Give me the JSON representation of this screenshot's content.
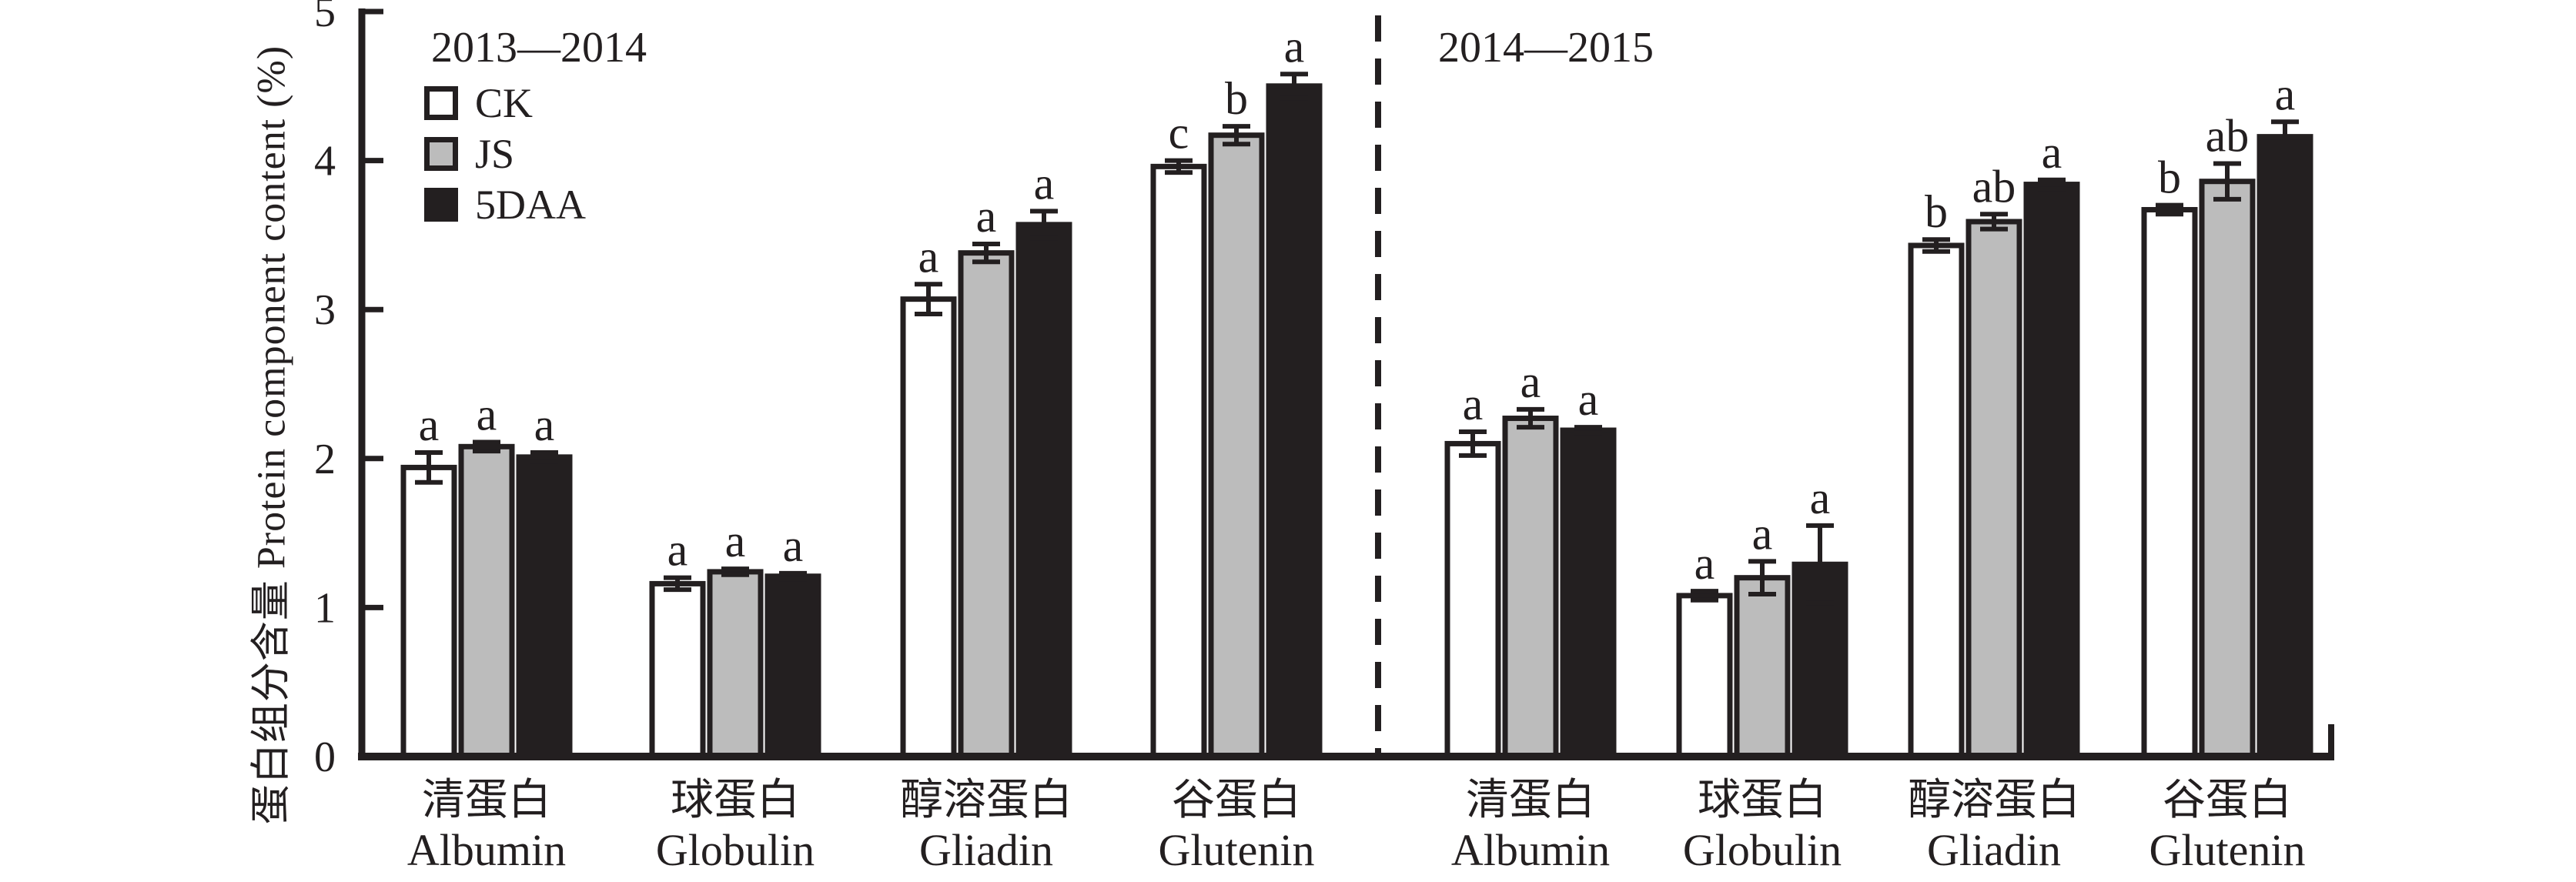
{
  "chart_data": {
    "type": "bar",
    "title": "",
    "ylabel": "蛋白组分含量 Protein component content (%)",
    "ylim": [
      0,
      5
    ],
    "yticks": [
      "0",
      "1",
      "2",
      "3",
      "4",
      "5"
    ],
    "grid": false,
    "legend": {
      "position": "top-left-inside",
      "items": [
        {
          "label": "CK",
          "fill": "#ffffff"
        },
        {
          "label": "JS",
          "fill": "#bcbcbc"
        },
        {
          "label": "5DAA",
          "fill": "#231f20"
        }
      ]
    },
    "colors": {
      "ink": "#231f20",
      "gray": "#bcbcbc",
      "white": "#ffffff"
    },
    "panels": [
      {
        "title": "2013—2014",
        "categories": [
          {
            "zh": "清蛋白",
            "en": "Albumin"
          },
          {
            "zh": "球蛋白",
            "en": "Globulin"
          },
          {
            "zh": "醇溶蛋白",
            "en": "Gliadin"
          },
          {
            "zh": "谷蛋白",
            "en": "Glutenin"
          }
        ],
        "series": [
          {
            "name": "CK",
            "fill": "#ffffff",
            "values": [
              1.94,
              1.16,
              3.07,
              3.96
            ],
            "errors": [
              0.1,
              0.04,
              0.1,
              0.04
            ],
            "letters": [
              "a",
              "a",
              "a",
              "c"
            ]
          },
          {
            "name": "JS",
            "fill": "#bcbcbc",
            "values": [
              2.08,
              1.24,
              3.38,
              4.17
            ],
            "errors": [
              0.03,
              0.02,
              0.06,
              0.06
            ],
            "letters": [
              "a",
              "a",
              "a",
              "b"
            ]
          },
          {
            "name": "5DAA",
            "fill": "#231f20",
            "values": [
              2.01,
              1.21,
              3.57,
              4.5
            ],
            "errors": [
              0.03,
              0.02,
              0.09,
              0.08
            ],
            "letters": [
              "a",
              "a",
              "a",
              "a"
            ]
          }
        ]
      },
      {
        "title": "2014—2015",
        "categories": [
          {
            "zh": "清蛋白",
            "en": "Albumin"
          },
          {
            "zh": "球蛋白",
            "en": "Globulin"
          },
          {
            "zh": "醇溶蛋白",
            "en": "Gliadin"
          },
          {
            "zh": "谷蛋白",
            "en": "Glutenin"
          }
        ],
        "series": [
          {
            "name": "CK",
            "fill": "#ffffff",
            "values": [
              2.1,
              1.08,
              3.43,
              3.67
            ],
            "errors": [
              0.08,
              0.03,
              0.04,
              0.03
            ],
            "letters": [
              "a",
              "a",
              "b",
              "b"
            ]
          },
          {
            "name": "JS",
            "fill": "#bcbcbc",
            "values": [
              2.27,
              1.2,
              3.59,
              3.86
            ],
            "errors": [
              0.06,
              0.11,
              0.05,
              0.12
            ],
            "letters": [
              "a",
              "a",
              "ab",
              "ab"
            ]
          },
          {
            "name": "5DAA",
            "fill": "#231f20",
            "values": [
              2.19,
              1.29,
              3.84,
              4.16
            ],
            "errors": [
              0.02,
              0.26,
              0.03,
              0.1
            ],
            "letters": [
              "a",
              "a",
              "a",
              "a"
            ]
          }
        ]
      }
    ]
  }
}
